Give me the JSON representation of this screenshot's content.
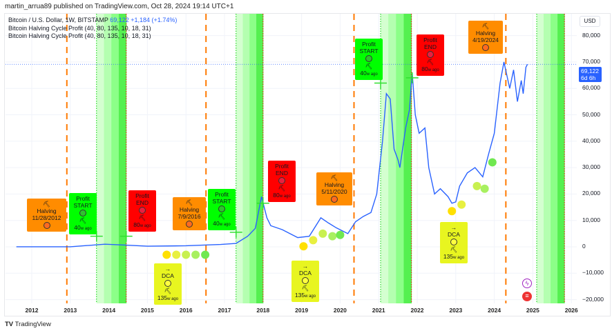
{
  "header": {
    "published": "martin_arrua89 published on TradingView.com, Oct 28, 2024 19:14 UTC+1"
  },
  "legend": {
    "symbol": "Bitcoin / U.S. Dollar, 1W, BITSTAMP",
    "price": "69,122",
    "change": "+1,184 (+1.74%)",
    "indicator1": "Bitcoin Halving Cycle Profit (40, 80, 135, 10, 18, 31)",
    "indicator2": "Bitcoin Halving Cycle Profit (40, 80, 135, 10, 18, 31)"
  },
  "axis": {
    "currency": "USD",
    "price_label": "69,122",
    "countdown": "6d 6h"
  },
  "footer": {
    "brand": "TradingView"
  },
  "colors": {
    "line": "#2962ff",
    "halving": "#ff7a00",
    "profit_start": "#00e600",
    "profit_end": "#ff0000",
    "dca": "#e6f21e"
  },
  "annotations": [
    {
      "type": "halving",
      "title": "Halving",
      "date": "11/28/2012",
      "icon": "pickaxe-icon"
    },
    {
      "type": "start",
      "title": "Profit",
      "sub": "START",
      "ago": "40",
      "unit": "w ago"
    },
    {
      "type": "end",
      "title": "Profit",
      "sub": "END",
      "ago": "80",
      "unit": "w ago"
    },
    {
      "type": "dca",
      "title": "DCA",
      "ago": "135",
      "unit": "w ago"
    },
    {
      "type": "halving",
      "title": "Halving",
      "date": "7/9/2016",
      "icon": "pickaxe-icon"
    },
    {
      "type": "start",
      "title": "Profit",
      "sub": "START",
      "ago": "40",
      "unit": "w ago"
    },
    {
      "type": "end",
      "title": "Profit",
      "sub": "END",
      "ago": "80",
      "unit": "w ago"
    },
    {
      "type": "dca",
      "title": "DCA",
      "ago": "135",
      "unit": "w ago"
    },
    {
      "type": "halving",
      "title": "Halving",
      "date": "5/11/2020",
      "icon": "pickaxe-icon"
    },
    {
      "type": "start",
      "title": "Profit",
      "sub": "START",
      "ago": "40",
      "unit": "w ago"
    },
    {
      "type": "end",
      "title": "Profit",
      "sub": "END",
      "ago": "80",
      "unit": "w ago"
    },
    {
      "type": "dca",
      "title": "DCA",
      "ago": "135",
      "unit": "w ago"
    },
    {
      "type": "halving",
      "title": "Halving",
      "date": "4/19/2024",
      "icon": "pickaxe-icon"
    }
  ],
  "chart_data": {
    "type": "line",
    "title": "Bitcoin / U.S. Dollar, 1W, BITSTAMP",
    "ylim": [
      -20000,
      85000
    ],
    "xlim": [
      2011.3,
      2026.1
    ],
    "yticks": [
      "80,000",
      "70,000",
      "60,000",
      "50,000",
      "40,000",
      "30,000",
      "20,000",
      "10,000",
      "0",
      "−10,000",
      "−20,000"
    ],
    "ytick_values": [
      80000,
      70000,
      60000,
      50000,
      40000,
      30000,
      20000,
      10000,
      0,
      -10000,
      -20000
    ],
    "xticks": [
      "2012",
      "2013",
      "2014",
      "2015",
      "2016",
      "2017",
      "2018",
      "2019",
      "2020",
      "2021",
      "2022",
      "2023",
      "2024",
      "2025",
      "2026"
    ],
    "series": [
      {
        "name": "BTCUSD",
        "points": [
          [
            2011.6,
            5
          ],
          [
            2013.0,
            13
          ],
          [
            2013.9,
            1000
          ],
          [
            2014.5,
            600
          ],
          [
            2015.0,
            250
          ],
          [
            2016.0,
            400
          ],
          [
            2016.9,
            900
          ],
          [
            2017.3,
            1300
          ],
          [
            2017.6,
            4000
          ],
          [
            2017.8,
            7000
          ],
          [
            2017.96,
            19000
          ],
          [
            2018.1,
            11000
          ],
          [
            2018.2,
            8000
          ],
          [
            2018.5,
            6500
          ],
          [
            2018.9,
            3500
          ],
          [
            2019.2,
            4000
          ],
          [
            2019.5,
            11000
          ],
          [
            2019.7,
            9000
          ],
          [
            2019.9,
            7200
          ],
          [
            2020.2,
            5000
          ],
          [
            2020.4,
            9500
          ],
          [
            2020.6,
            11500
          ],
          [
            2020.8,
            13000
          ],
          [
            2020.95,
            20000
          ],
          [
            2021.1,
            40000
          ],
          [
            2021.2,
            58000
          ],
          [
            2021.3,
            56000
          ],
          [
            2021.4,
            37000
          ],
          [
            2021.5,
            33000
          ],
          [
            2021.55,
            30000
          ],
          [
            2021.7,
            45000
          ],
          [
            2021.8,
            52000
          ],
          [
            2021.87,
            66000
          ],
          [
            2021.95,
            50000
          ],
          [
            2022.05,
            43000
          ],
          [
            2022.2,
            45000
          ],
          [
            2022.3,
            30000
          ],
          [
            2022.45,
            20000
          ],
          [
            2022.6,
            22000
          ],
          [
            2022.8,
            19000
          ],
          [
            2022.9,
            16500
          ],
          [
            2023.0,
            17000
          ],
          [
            2023.1,
            23000
          ],
          [
            2023.3,
            28000
          ],
          [
            2023.5,
            30000
          ],
          [
            2023.7,
            26500
          ],
          [
            2023.85,
            35000
          ],
          [
            2024.0,
            43000
          ],
          [
            2024.15,
            62000
          ],
          [
            2024.25,
            70000
          ],
          [
            2024.4,
            60000
          ],
          [
            2024.5,
            67000
          ],
          [
            2024.6,
            55000
          ],
          [
            2024.7,
            63000
          ],
          [
            2024.75,
            58000
          ],
          [
            2024.82,
            68000
          ],
          [
            2024.86,
            69122
          ]
        ]
      }
    ],
    "halvings": [
      2012.91,
      2016.52,
      2020.36,
      2024.3
    ],
    "profit_zones": [
      [
        2013.68,
        2014.45
      ],
      [
        2017.3,
        2018.0
      ],
      [
        2021.05,
        2021.85
      ],
      [
        2025.1,
        2025.82
      ]
    ],
    "dca_points": [
      [
        2015.5,
        -3000
      ],
      [
        2015.75,
        -3000
      ],
      [
        2016.0,
        -3000
      ],
      [
        2016.25,
        -3000
      ],
      [
        2016.5,
        -3000
      ],
      [
        2019.05,
        200
      ],
      [
        2019.3,
        2500
      ],
      [
        2019.55,
        5000
      ],
      [
        2019.8,
        4000
      ],
      [
        2020.0,
        4500
      ],
      [
        2022.9,
        13500
      ],
      [
        2023.15,
        16000
      ],
      [
        2023.55,
        23000
      ],
      [
        2023.75,
        22000
      ],
      [
        2023.95,
        32000
      ]
    ],
    "last_price": 69122
  }
}
